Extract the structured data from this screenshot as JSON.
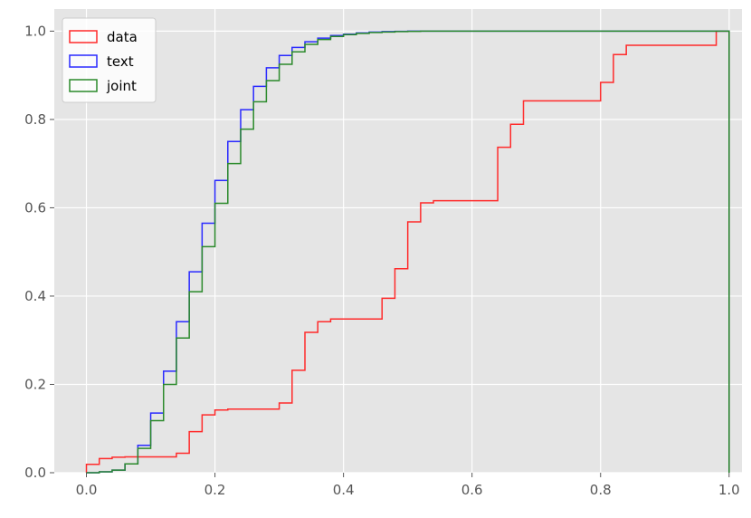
{
  "chart_data": {
    "type": "line",
    "style": "step",
    "title": "",
    "xlabel": "",
    "ylabel": "",
    "xlim": [
      -0.05,
      1.02
    ],
    "ylim": [
      0,
      1.05
    ],
    "xticks": [
      0.0,
      0.2,
      0.4,
      0.6,
      0.8,
      1.0
    ],
    "xtick_labels": [
      "0.0",
      "0.2",
      "0.4",
      "0.6",
      "0.8",
      "1.0"
    ],
    "yticks": [
      0.0,
      0.2,
      0.4,
      0.6,
      0.8,
      1.0
    ],
    "ytick_labels": [
      "0.0",
      "0.2",
      "0.4",
      "0.6",
      "0.8",
      "1.0"
    ],
    "grid": true,
    "background": "#e5e5e5",
    "legend_position": "top-left",
    "series": [
      {
        "name": "data",
        "color": "#ff2a2a",
        "x": [
          0.0,
          0.02,
          0.04,
          0.06,
          0.08,
          0.1,
          0.12,
          0.14,
          0.16,
          0.18,
          0.2,
          0.22,
          0.24,
          0.26,
          0.28,
          0.3,
          0.32,
          0.34,
          0.36,
          0.38,
          0.4,
          0.42,
          0.44,
          0.46,
          0.48,
          0.5,
          0.52,
          0.54,
          0.56,
          0.58,
          0.6,
          0.62,
          0.64,
          0.66,
          0.68,
          0.7,
          0.72,
          0.74,
          0.76,
          0.78,
          0.8,
          0.82,
          0.84,
          0.86,
          0.88,
          0.9,
          0.92,
          0.94,
          0.96,
          0.98,
          1.0
        ],
        "y": [
          0.019,
          0.032,
          0.035,
          0.036,
          0.036,
          0.036,
          0.036,
          0.044,
          0.093,
          0.131,
          0.142,
          0.144,
          0.144,
          0.144,
          0.144,
          0.158,
          0.232,
          0.318,
          0.342,
          0.348,
          0.348,
          0.348,
          0.348,
          0.395,
          0.462,
          0.568,
          0.611,
          0.616,
          0.616,
          0.616,
          0.616,
          0.616,
          0.737,
          0.789,
          0.842,
          0.842,
          0.842,
          0.842,
          0.842,
          0.842,
          0.884,
          0.947,
          0.968,
          0.968,
          0.968,
          0.968,
          0.968,
          0.968,
          0.968,
          1.0,
          0.0
        ]
      },
      {
        "name": "text",
        "color": "#2929ff",
        "x": [
          0.0,
          0.02,
          0.04,
          0.06,
          0.08,
          0.1,
          0.12,
          0.14,
          0.16,
          0.18,
          0.2,
          0.22,
          0.24,
          0.26,
          0.28,
          0.3,
          0.32,
          0.34,
          0.36,
          0.38,
          0.4,
          0.42,
          0.44,
          0.46,
          0.48,
          0.5,
          0.52,
          0.54,
          0.56,
          0.58,
          0.6,
          0.62,
          0.64,
          0.66,
          0.68,
          0.7,
          0.72,
          0.74,
          0.76,
          0.78,
          0.8,
          0.82,
          0.84,
          0.86,
          0.88,
          0.9,
          0.92,
          0.94,
          0.96,
          0.98,
          1.0
        ],
        "y": [
          0.0,
          0.002,
          0.006,
          0.02,
          0.062,
          0.135,
          0.23,
          0.342,
          0.455,
          0.565,
          0.662,
          0.75,
          0.822,
          0.875,
          0.917,
          0.945,
          0.963,
          0.976,
          0.984,
          0.99,
          0.993,
          0.996,
          0.998,
          0.999,
          0.9995,
          1.0,
          1.0,
          1.0,
          1.0,
          1.0,
          1.0,
          1.0,
          1.0,
          1.0,
          1.0,
          1.0,
          1.0,
          1.0,
          1.0,
          1.0,
          1.0,
          1.0,
          1.0,
          1.0,
          1.0,
          1.0,
          1.0,
          1.0,
          1.0,
          1.0,
          0.0
        ]
      },
      {
        "name": "joint",
        "color": "#2b8a2b",
        "x": [
          0.0,
          0.02,
          0.04,
          0.06,
          0.08,
          0.1,
          0.12,
          0.14,
          0.16,
          0.18,
          0.2,
          0.22,
          0.24,
          0.26,
          0.28,
          0.3,
          0.32,
          0.34,
          0.36,
          0.38,
          0.4,
          0.42,
          0.44,
          0.46,
          0.48,
          0.5,
          0.52,
          0.54,
          0.56,
          0.58,
          0.6,
          0.62,
          0.64,
          0.66,
          0.68,
          0.7,
          0.72,
          0.74,
          0.76,
          0.78,
          0.8,
          0.82,
          0.84,
          0.86,
          0.88,
          0.9,
          0.92,
          0.94,
          0.96,
          0.98,
          1.0
        ],
        "y": [
          0.0,
          0.002,
          0.006,
          0.02,
          0.055,
          0.118,
          0.2,
          0.305,
          0.41,
          0.512,
          0.61,
          0.7,
          0.778,
          0.84,
          0.888,
          0.925,
          0.953,
          0.97,
          0.981,
          0.988,
          0.992,
          0.995,
          0.997,
          0.998,
          0.999,
          0.9995,
          1.0,
          1.0,
          1.0,
          1.0,
          1.0,
          1.0,
          1.0,
          1.0,
          1.0,
          1.0,
          1.0,
          1.0,
          1.0,
          1.0,
          1.0,
          1.0,
          1.0,
          1.0,
          1.0,
          1.0,
          1.0,
          1.0,
          1.0,
          1.0,
          0.0
        ]
      }
    ]
  }
}
